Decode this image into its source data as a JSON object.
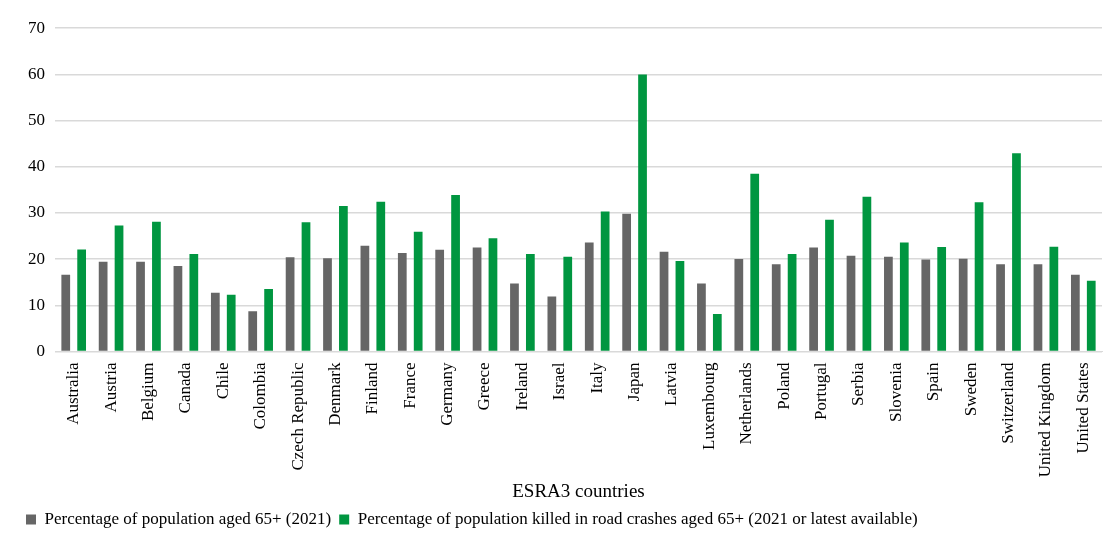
{
  "chart_data": {
    "type": "bar",
    "xlabel": "ESRA3 countries",
    "categories": [
      "Australia",
      "Austria",
      "Belgium",
      "Canada",
      "Chile",
      "Colombia",
      "Czech Republic",
      "Denmark",
      "Finland",
      "France",
      "Germany",
      "Greece",
      "Ireland",
      "Israel",
      "Italy",
      "Japan",
      "Latvia",
      "Luxembourg",
      "Netherlands",
      "Poland",
      "Portugal",
      "Serbia",
      "Slovenia",
      "Spain",
      "Sweden",
      "Switzerland",
      "United Kingdom",
      "United States"
    ],
    "series": [
      {
        "name": "Percentage of population aged 65+ (2021)",
        "color": "#666666",
        "values": [
          16.6,
          19.4,
          19.4,
          18.5,
          12.7,
          8.7,
          20.4,
          20.2,
          22.9,
          21.3,
          22.0,
          22.5,
          14.7,
          11.9,
          23.6,
          29.8,
          21.6,
          14.7,
          20.0,
          18.9,
          22.5,
          20.7,
          20.5,
          19.9,
          20.1,
          18.9,
          18.9,
          16.6
        ]
      },
      {
        "name": "Percentage of population killed in road crashes aged 65+ (2021 or latest available)",
        "color": "#009640",
        "values": [
          22.1,
          27.3,
          28.1,
          21.1,
          12.3,
          13.5,
          28.0,
          31.5,
          32.4,
          25.9,
          33.9,
          24.5,
          21.1,
          20.5,
          30.3,
          60.0,
          19.6,
          8.1,
          38.5,
          21.1,
          28.5,
          33.5,
          23.6,
          22.6,
          32.3,
          42.9,
          22.7,
          15.3
        ]
      }
    ],
    "ylim": [
      0,
      70
    ],
    "yticks": [
      0,
      10,
      20,
      30,
      40,
      50,
      60,
      70
    ],
    "grid": "y",
    "legend": "bottom"
  }
}
